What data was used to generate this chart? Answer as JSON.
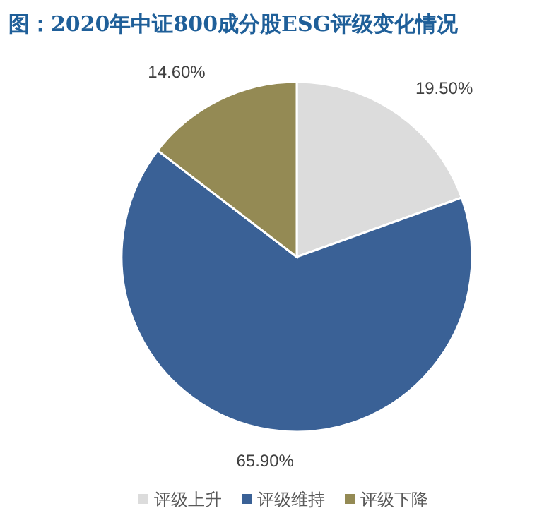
{
  "chart_data": {
    "type": "pie",
    "title": "图：2020年中证800成分股ESG评级变化情况",
    "categories": [
      "评级上升",
      "评级维持",
      "评级下降"
    ],
    "values": [
      19.5,
      65.9,
      14.6
    ],
    "colors": [
      "#dcdcdc",
      "#3a6196",
      "#948a54"
    ],
    "value_labels": [
      "19.50%",
      "65.90%",
      "14.60%"
    ],
    "legend": "bottom"
  }
}
